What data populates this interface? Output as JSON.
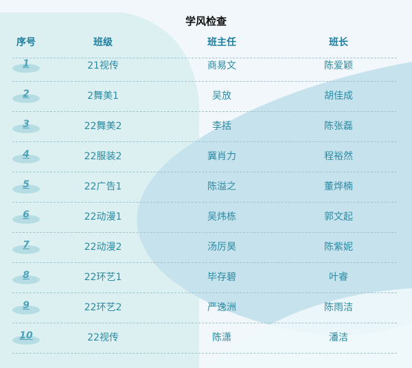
{
  "title": "学风检查",
  "colors": {
    "header": "#1d7e9f",
    "text": "#2a8aa2",
    "badge": "#b7dde4"
  },
  "headers": [
    "序号",
    "班级",
    "班主任",
    "班长"
  ],
  "rows": [
    {
      "no": "1",
      "class": "21视传",
      "teacher": "商易文",
      "monitor": "陈爱颖"
    },
    {
      "no": "2",
      "class": "2舞美1",
      "teacher": "吴放",
      "monitor": "胡佳成"
    },
    {
      "no": "3",
      "class": "22舞美2",
      "teacher": "李括",
      "monitor": "陈张磊"
    },
    {
      "no": "4",
      "class": "22服装2",
      "teacher": "冀肖力",
      "monitor": "程裕然"
    },
    {
      "no": "5",
      "class": "22广告1",
      "teacher": "陈溢之",
      "monitor": "董烨楠"
    },
    {
      "no": "6",
      "class": "22动漫1",
      "teacher": "吴炜栋",
      "monitor": "郭文起"
    },
    {
      "no": "7",
      "class": "22动漫2",
      "teacher": "汤厉昊",
      "monitor": "陈紫妮"
    },
    {
      "no": "8",
      "class": "22环艺1",
      "teacher": "毕存碧",
      "monitor": "叶睿"
    },
    {
      "no": "9",
      "class": "22环艺2",
      "teacher": "严逸洲",
      "monitor": "陈雨洁"
    },
    {
      "no": "10",
      "class": "22视传",
      "teacher": "陈潇",
      "monitor": "潘洁"
    }
  ]
}
